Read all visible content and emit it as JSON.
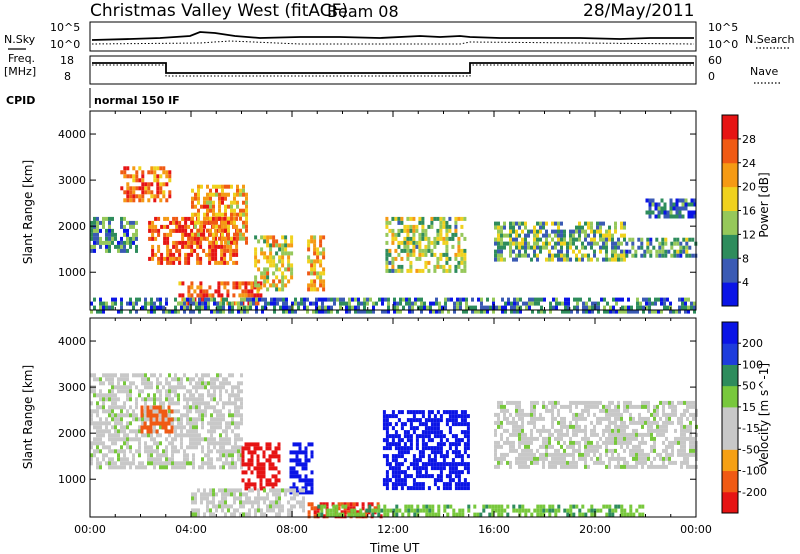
{
  "header": {
    "title": "Christmas Valley West (fitACF)",
    "beam": "Beam 08",
    "date": "28/May/2011"
  },
  "housekeeping": {
    "nsky_label": "N.Sky",
    "nsearch_label": "N.Search",
    "log_top": "10^5",
    "log_bottom": "10^0",
    "freq_label": "Freq.",
    "freq_unit": "[MHz]",
    "freq_ticks": [
      "18",
      "8"
    ],
    "nave_label": "Nave",
    "nave_ticks": [
      "60",
      "0"
    ],
    "cpid_label": "CPID",
    "cpid_value": "normal 150 IF"
  },
  "colors": {
    "power": [
      "#0a14e6",
      "#3a5ab4",
      "#2e8c5c",
      "#96c85a",
      "#f0d21e",
      "#f59a14",
      "#f05a14",
      "#e61414"
    ],
    "velocity": [
      "#e61414",
      "#f05a14",
      "#f5a014",
      "#c8c8c8",
      "#c8c8c8",
      "#78c83c",
      "#2e8c5c",
      "#1e3cdc",
      "#0a14e6"
    ]
  },
  "chart_data": [
    {
      "type": "heatmap",
      "name": "power-panel",
      "xlabel": "",
      "ylabel": "Slant Range [km]",
      "ytick_labels": [
        "1000",
        "2000",
        "3000",
        "4000"
      ],
      "colorbar_label": "Power [dB]",
      "colorbar_ticks": [
        "4",
        "8",
        "12",
        "16",
        "20",
        "24",
        "28"
      ],
      "xlim": [
        0,
        24
      ],
      "ylim": [
        180,
        4500
      ],
      "regions": [
        {
          "t": [
            1.2,
            3.2
          ],
          "r": [
            2600,
            3300
          ],
          "v": 25
        },
        {
          "t": [
            2.3,
            5.8
          ],
          "r": [
            1200,
            2200
          ],
          "v": 27
        },
        {
          "t": [
            4.0,
            6.2
          ],
          "r": [
            1600,
            2900
          ],
          "v": 22
        },
        {
          "t": [
            3.5,
            6.8
          ],
          "r": [
            300,
            800
          ],
          "v": 26
        },
        {
          "t": [
            6.5,
            8.0
          ],
          "r": [
            600,
            1800
          ],
          "v": 18
        },
        {
          "t": [
            8.6,
            9.3
          ],
          "r": [
            600,
            1800
          ],
          "v": 20
        },
        {
          "t": [
            0.0,
            1.8
          ],
          "r": [
            1500,
            2200
          ],
          "v": 9
        },
        {
          "t": [
            11.7,
            14.9
          ],
          "r": [
            1000,
            2200
          ],
          "v": 14
        },
        {
          "t": [
            16.0,
            21.2
          ],
          "r": [
            1300,
            2100
          ],
          "v": 12
        },
        {
          "t": [
            21.2,
            24.0
          ],
          "r": [
            1350,
            1750
          ],
          "v": 10
        },
        {
          "t": [
            22.0,
            24.0
          ],
          "r": [
            2200,
            2600
          ],
          "v": 7
        },
        {
          "t": [
            0.0,
            24.0
          ],
          "r": [
            180,
            450
          ],
          "v": 8
        }
      ]
    },
    {
      "type": "heatmap",
      "name": "velocity-panel",
      "xlabel": "Time UT",
      "ylabel": "Slant Range [km]",
      "xtick_labels": [
        "00:00",
        "04:00",
        "08:00",
        "12:00",
        "16:00",
        "20:00",
        "00:00"
      ],
      "ytick_labels": [
        "1000",
        "2000",
        "3000",
        "4000"
      ],
      "colorbar_label": "Velocity [m s^-1]",
      "colorbar_ticks": [
        "200",
        "100",
        "50",
        "15",
        "-15",
        "-50",
        "-100",
        "-200"
      ],
      "xlim": [
        0,
        24
      ],
      "ylim": [
        180,
        4500
      ],
      "regions": [
        {
          "t": [
            0.0,
            6.0
          ],
          "r": [
            1300,
            3300
          ],
          "v": 0
        },
        {
          "t": [
            2.0,
            3.2
          ],
          "r": [
            2000,
            2600
          ],
          "v": -150
        },
        {
          "t": [
            6.0,
            7.5
          ],
          "r": [
            800,
            1800
          ],
          "v": -220
        },
        {
          "t": [
            7.9,
            8.8
          ],
          "r": [
            700,
            1800
          ],
          "v": 220
        },
        {
          "t": [
            8.5,
            11.5
          ],
          "r": [
            200,
            500
          ],
          "v": -200
        },
        {
          "t": [
            11.6,
            15.0
          ],
          "r": [
            800,
            2500
          ],
          "v": 220
        },
        {
          "t": [
            16.0,
            24.0
          ],
          "r": [
            1300,
            2700
          ],
          "v": 0
        },
        {
          "t": [
            4.0,
            8.5
          ],
          "r": [
            200,
            800
          ],
          "v": 0
        },
        {
          "t": [
            9.0,
            22.0
          ],
          "r": [
            200,
            450
          ],
          "v": 40
        }
      ]
    }
  ]
}
